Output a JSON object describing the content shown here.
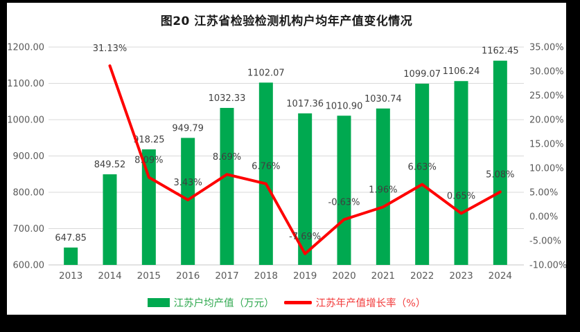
{
  "title": "图20  江苏省检验检测机构户均年产值变化情况",
  "colors": {
    "frame_background": "#000000",
    "panel_background": "#ffffff",
    "bar_green": "#00A950",
    "line_red": "#FE0000",
    "gridline": "#D9D9D9",
    "baseline": "#C6C6C6",
    "axis_text": "#595959",
    "data_label_text": "#3F3F3F"
  },
  "legend": [
    {
      "label": "江苏户均产值（万元）",
      "type": "bar",
      "color": "#00A950",
      "text_color": "#2FA84F"
    },
    {
      "label": "江苏年产值增长率（%）",
      "type": "line",
      "color": "#FE0000",
      "text_color": "#F23B3B"
    }
  ],
  "chart_data": {
    "type": "combo-bar-line",
    "categories": [
      "2013",
      "2014",
      "2015",
      "2016",
      "2017",
      "2018",
      "2019",
      "2020",
      "2021",
      "2022",
      "2023",
      "2024"
    ],
    "series": [
      {
        "name": "江苏户均产值（万元）",
        "type": "bar",
        "axis": "left",
        "color": "#00A950",
        "values": [
          647.85,
          849.52,
          918.25,
          949.79,
          1032.33,
          1102.07,
          1017.36,
          1010.9,
          1030.74,
          1099.07,
          1106.24,
          1162.45
        ],
        "labels": [
          "647.85",
          "849.52",
          "918.25",
          "949.79",
          "1032.33",
          "1102.07",
          "1017.36",
          "1010.90",
          "1030.74",
          "1099.07",
          "1106.24",
          "1162.45"
        ]
      },
      {
        "name": "江苏年产值增长率（%）",
        "type": "line",
        "axis": "right",
        "color": "#FE0000",
        "values": [
          null,
          31.13,
          8.09,
          3.43,
          8.69,
          6.76,
          -7.69,
          -0.63,
          1.96,
          6.63,
          0.65,
          5.08
        ],
        "labels": [
          null,
          "31.13%",
          "8.09%",
          "3.43%",
          "8.69%",
          "6.76%",
          "-7.69%",
          "-0.63%",
          "1.96%",
          "6.63%",
          "0.65%",
          "5.08%"
        ]
      }
    ],
    "left_axis": {
      "min": 600,
      "max": 1200,
      "step": 100,
      "tick_labels": [
        "600.00",
        "700.00",
        "800.00",
        "900.00",
        "1000.00",
        "1100.00",
        "1200.00"
      ]
    },
    "right_axis": {
      "min": -10,
      "max": 35,
      "step": 5,
      "tick_labels": [
        "-10.00%",
        "-5.00%",
        "0.00%",
        "5.00%",
        "10.00%",
        "15.00%",
        "20.00%",
        "25.00%",
        "30.00%",
        "35.00%"
      ]
    },
    "grid": true,
    "legend_position": "bottom"
  }
}
